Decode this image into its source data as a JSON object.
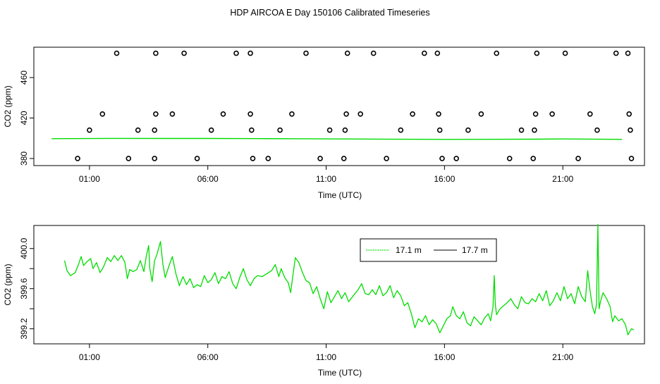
{
  "page": {
    "title": "HDP AIRCOA E  Day 150106  Calibrated Timeseries"
  },
  "colors": {
    "series_green": "#00dd00",
    "series_black": "#000000",
    "marker": "#000000",
    "axis": "#000000"
  },
  "chart_data": [
    {
      "type": "scatter",
      "panel": "top",
      "xlabel": "Time (UTC)",
      "ylabel": "CO2 (ppm)",
      "x_ticks": [
        {
          "value": 1,
          "label": "01:00"
        },
        {
          "value": 6,
          "label": "06:00"
        },
        {
          "value": 11,
          "label": "11:00"
        },
        {
          "value": 16,
          "label": "16:00"
        },
        {
          "value": 21,
          "label": "21:00"
        }
      ],
      "y_ticks": [
        {
          "value": 380,
          "label": "380"
        },
        {
          "value": 420,
          "label": "420"
        },
        {
          "value": 460,
          "label": "460"
        }
      ],
      "xlim": [
        -1.35,
        24.45
      ],
      "ylim": [
        373,
        490
      ],
      "markers": {
        "name": "open-circles",
        "points": [
          [
            0.5,
            380
          ],
          [
            1.0,
            408
          ],
          [
            1.55,
            424
          ],
          [
            2.15,
            484
          ],
          [
            2.65,
            380
          ],
          [
            3.05,
            408
          ],
          [
            3.75,
            380
          ],
          [
            3.75,
            408
          ],
          [
            3.8,
            424
          ],
          [
            3.8,
            484
          ],
          [
            4.5,
            424
          ],
          [
            5.0,
            484
          ],
          [
            5.55,
            380
          ],
          [
            6.15,
            408
          ],
          [
            6.65,
            424
          ],
          [
            7.2,
            484
          ],
          [
            7.8,
            484
          ],
          [
            7.8,
            424
          ],
          [
            7.85,
            408
          ],
          [
            7.9,
            380
          ],
          [
            8.55,
            380
          ],
          [
            9.05,
            408
          ],
          [
            9.55,
            424
          ],
          [
            10.15,
            484
          ],
          [
            10.75,
            380
          ],
          [
            11.15,
            408
          ],
          [
            11.75,
            380
          ],
          [
            11.8,
            408
          ],
          [
            11.85,
            424
          ],
          [
            11.9,
            484
          ],
          [
            12.45,
            424
          ],
          [
            13.0,
            484
          ],
          [
            13.55,
            380
          ],
          [
            14.15,
            408
          ],
          [
            14.65,
            424
          ],
          [
            15.15,
            484
          ],
          [
            15.7,
            484
          ],
          [
            15.75,
            424
          ],
          [
            15.8,
            408
          ],
          [
            15.9,
            380
          ],
          [
            16.5,
            380
          ],
          [
            17.0,
            408
          ],
          [
            17.55,
            424
          ],
          [
            18.2,
            484
          ],
          [
            18.75,
            380
          ],
          [
            19.25,
            408
          ],
          [
            19.75,
            380
          ],
          [
            19.8,
            408
          ],
          [
            19.85,
            424
          ],
          [
            19.9,
            484
          ],
          [
            20.55,
            424
          ],
          [
            21.1,
            484
          ],
          [
            21.65,
            380
          ],
          [
            22.15,
            424
          ],
          [
            22.45,
            408
          ],
          [
            23.25,
            484
          ],
          [
            23.75,
            484
          ],
          [
            23.8,
            424
          ],
          [
            23.85,
            408
          ],
          [
            23.9,
            380
          ]
        ]
      },
      "line": {
        "name": "17.1 m",
        "points": [
          [
            -0.6,
            399.6
          ],
          [
            2.0,
            399.9
          ],
          [
            4.0,
            399.8
          ],
          [
            6.0,
            399.8
          ],
          [
            8.0,
            399.7
          ],
          [
            10.0,
            399.5
          ],
          [
            11.5,
            399.3
          ],
          [
            13.0,
            399.2
          ],
          [
            15.0,
            399.0
          ],
          [
            16.0,
            398.9
          ],
          [
            18.0,
            399.0
          ],
          [
            20.0,
            399.1
          ],
          [
            21.0,
            399.3
          ],
          [
            22.0,
            399.2
          ],
          [
            23.5,
            398.9
          ]
        ]
      }
    },
    {
      "type": "line",
      "panel": "bottom",
      "xlabel": "Time (UTC)",
      "ylabel": "CO2 (ppm)",
      "x_ticks": [
        {
          "value": 1,
          "label": "01:00"
        },
        {
          "value": 6,
          "label": "06:00"
        },
        {
          "value": 11,
          "label": "11:00"
        },
        {
          "value": 16,
          "label": "16:00"
        },
        {
          "value": 21,
          "label": "21:00"
        }
      ],
      "y_ticks": [
        {
          "value": 399.2,
          "label": "399.2"
        },
        {
          "value": 399.4,
          "label": ""
        },
        {
          "value": 399.6,
          "label": "399.6"
        },
        {
          "value": 399.8,
          "label": ""
        },
        {
          "value": 400.0,
          "label": "400.0"
        }
      ],
      "xlim": [
        -1.35,
        24.45
      ],
      "ylim": [
        399.05,
        400.23
      ],
      "legend": {
        "placement": "top-center",
        "entries": [
          {
            "label": "17.1 m",
            "color": "#00dd00",
            "style": "dotted"
          },
          {
            "label": "17.7 m",
            "color": "#000000",
            "style": "solid"
          }
        ]
      },
      "series": [
        {
          "name": "17.1 m",
          "points": [
            [
              -0.05,
              399.88
            ],
            [
              0.05,
              399.78
            ],
            [
              0.2,
              399.73
            ],
            [
              0.4,
              399.76
            ],
            [
              0.55,
              399.85
            ],
            [
              0.65,
              399.92
            ],
            [
              0.75,
              399.83
            ],
            [
              0.9,
              399.87
            ],
            [
              1.05,
              399.9
            ],
            [
              1.15,
              399.8
            ],
            [
              1.3,
              399.86
            ],
            [
              1.45,
              399.76
            ],
            [
              1.6,
              399.82
            ],
            [
              1.75,
              399.91
            ],
            [
              1.9,
              399.87
            ],
            [
              2.05,
              399.93
            ],
            [
              2.2,
              399.88
            ],
            [
              2.35,
              399.93
            ],
            [
              2.5,
              399.86
            ],
            [
              2.6,
              399.7
            ],
            [
              2.7,
              399.79
            ],
            [
              2.85,
              399.77
            ],
            [
              3.0,
              399.79
            ],
            [
              3.15,
              399.88
            ],
            [
              3.3,
              399.77
            ],
            [
              3.4,
              399.92
            ],
            [
              3.5,
              400.03
            ],
            [
              3.55,
              399.8
            ],
            [
              3.65,
              399.67
            ],
            [
              3.75,
              399.88
            ],
            [
              3.85,
              399.94
            ],
            [
              4.0,
              400.07
            ],
            [
              4.1,
              399.85
            ],
            [
              4.2,
              399.71
            ],
            [
              4.35,
              399.82
            ],
            [
              4.5,
              399.92
            ],
            [
              4.65,
              399.75
            ],
            [
              4.8,
              399.63
            ],
            [
              4.95,
              399.72
            ],
            [
              5.1,
              399.64
            ],
            [
              5.25,
              399.7
            ],
            [
              5.4,
              399.61
            ],
            [
              5.55,
              399.64
            ],
            [
              5.7,
              399.62
            ],
            [
              5.85,
              399.73
            ],
            [
              6.0,
              399.66
            ],
            [
              6.15,
              399.69
            ],
            [
              6.3,
              399.76
            ],
            [
              6.45,
              399.65
            ],
            [
              6.6,
              399.72
            ],
            [
              6.75,
              399.7
            ],
            [
              6.9,
              399.77
            ],
            [
              7.05,
              399.65
            ],
            [
              7.2,
              399.6
            ],
            [
              7.35,
              399.71
            ],
            [
              7.5,
              399.8
            ],
            [
              7.65,
              399.69
            ],
            [
              7.8,
              399.63
            ],
            [
              7.95,
              399.7
            ],
            [
              8.1,
              399.73
            ],
            [
              8.3,
              399.72
            ],
            [
              8.5,
              399.75
            ],
            [
              8.7,
              399.78
            ],
            [
              8.85,
              399.84
            ],
            [
              9.0,
              399.72
            ],
            [
              9.1,
              399.8
            ],
            [
              9.25,
              399.71
            ],
            [
              9.4,
              399.66
            ],
            [
              9.5,
              399.56
            ],
            [
              9.6,
              399.74
            ],
            [
              9.7,
              399.91
            ],
            [
              9.85,
              399.86
            ],
            [
              10.0,
              399.76
            ],
            [
              10.15,
              399.68
            ],
            [
              10.3,
              399.66
            ],
            [
              10.45,
              399.55
            ],
            [
              10.6,
              399.62
            ],
            [
              10.75,
              399.5
            ],
            [
              10.9,
              399.4
            ],
            [
              11.05,
              399.57
            ],
            [
              11.2,
              399.46
            ],
            [
              11.35,
              399.52
            ],
            [
              11.5,
              399.58
            ],
            [
              11.65,
              399.5
            ],
            [
              11.8,
              399.56
            ],
            [
              11.95,
              399.47
            ],
            [
              12.15,
              399.53
            ],
            [
              12.35,
              399.59
            ],
            [
              12.5,
              399.65
            ],
            [
              12.65,
              399.55
            ],
            [
              12.8,
              399.54
            ],
            [
              12.95,
              399.59
            ],
            [
              13.1,
              399.54
            ],
            [
              13.25,
              399.63
            ],
            [
              13.4,
              399.53
            ],
            [
              13.55,
              399.56
            ],
            [
              13.7,
              399.63
            ],
            [
              13.85,
              399.51
            ],
            [
              14.0,
              399.58
            ],
            [
              14.15,
              399.53
            ],
            [
              14.3,
              399.43
            ],
            [
              14.45,
              399.46
            ],
            [
              14.6,
              399.35
            ],
            [
              14.75,
              399.21
            ],
            [
              14.9,
              399.3
            ],
            [
              15.05,
              399.27
            ],
            [
              15.2,
              399.33
            ],
            [
              15.35,
              399.24
            ],
            [
              15.5,
              399.29
            ],
            [
              15.65,
              399.25
            ],
            [
              15.8,
              399.16
            ],
            [
              15.95,
              399.23
            ],
            [
              16.1,
              399.3
            ],
            [
              16.25,
              399.33
            ],
            [
              16.35,
              399.42
            ],
            [
              16.5,
              399.33
            ],
            [
              16.65,
              399.3
            ],
            [
              16.8,
              399.37
            ],
            [
              16.95,
              399.26
            ],
            [
              17.1,
              399.23
            ],
            [
              17.25,
              399.32
            ],
            [
              17.4,
              399.28
            ],
            [
              17.55,
              399.24
            ],
            [
              17.7,
              399.31
            ],
            [
              17.85,
              399.35
            ],
            [
              17.95,
              399.28
            ],
            [
              18.05,
              399.42
            ],
            [
              18.1,
              399.73
            ],
            [
              18.15,
              399.44
            ],
            [
              18.2,
              399.34
            ],
            [
              18.35,
              399.4
            ],
            [
              18.5,
              399.43
            ],
            [
              18.65,
              399.46
            ],
            [
              18.8,
              399.5
            ],
            [
              18.95,
              399.44
            ],
            [
              19.1,
              399.4
            ],
            [
              19.25,
              399.52
            ],
            [
              19.4,
              399.46
            ],
            [
              19.55,
              399.45
            ],
            [
              19.7,
              399.5
            ],
            [
              19.85,
              399.47
            ],
            [
              20.0,
              399.55
            ],
            [
              20.15,
              399.48
            ],
            [
              20.3,
              399.58
            ],
            [
              20.45,
              399.43
            ],
            [
              20.6,
              399.48
            ],
            [
              20.75,
              399.56
            ],
            [
              20.9,
              399.48
            ],
            [
              21.05,
              399.62
            ],
            [
              21.2,
              399.5
            ],
            [
              21.35,
              399.55
            ],
            [
              21.5,
              399.45
            ],
            [
              21.65,
              399.62
            ],
            [
              21.8,
              399.52
            ],
            [
              21.95,
              399.47
            ],
            [
              22.05,
              399.78
            ],
            [
              22.15,
              399.58
            ],
            [
              22.25,
              399.42
            ],
            [
              22.35,
              399.35
            ],
            [
              22.42,
              399.44
            ],
            [
              22.48,
              400.24
            ],
            [
              22.53,
              399.4
            ],
            [
              22.6,
              399.48
            ],
            [
              22.7,
              399.56
            ],
            [
              22.85,
              399.5
            ],
            [
              23.0,
              399.42
            ],
            [
              23.1,
              399.27
            ],
            [
              23.2,
              399.33
            ],
            [
              23.35,
              399.28
            ],
            [
              23.5,
              399.3
            ],
            [
              23.65,
              399.24
            ],
            [
              23.75,
              399.14
            ],
            [
              23.9,
              399.2
            ],
            [
              24.0,
              399.19
            ]
          ]
        },
        {
          "name": "17.7 m",
          "points": []
        }
      ]
    }
  ]
}
